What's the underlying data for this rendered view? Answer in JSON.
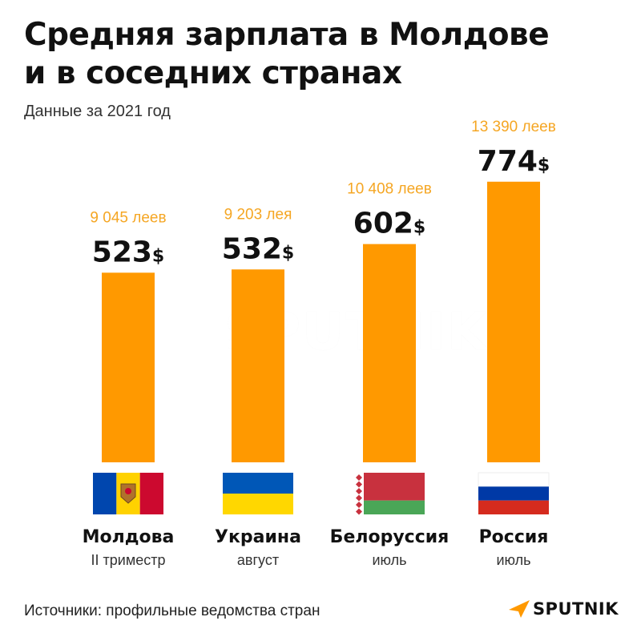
{
  "title_line1": "Средняя зарплата в Молдове",
  "title_line2": "и в соседних странах",
  "subtitle": "Данные за 2021 год",
  "source": "Источники: профильные ведомства стран",
  "brand": "SPUTNIK",
  "watermark": "SPUTNIK",
  "colors": {
    "bar": "#FF9900",
    "lei_label": "#F5A623",
    "text": "#111111"
  },
  "chart_data": {
    "type": "bar",
    "unit": "$",
    "categories": [
      "Молдова",
      "Украина",
      "Белоруссия",
      "Россия"
    ],
    "periods": [
      "II триместр",
      "август",
      "июль",
      "июль"
    ],
    "values": [
      523,
      532,
      602,
      774
    ],
    "value_labels": [
      "523",
      "532",
      "602",
      "774"
    ],
    "lei_labels": [
      "9 045 леев",
      "9 203 лея",
      "10 408 леев",
      "13 390 леев"
    ],
    "flags": [
      "moldova-flag",
      "ukraine-flag",
      "belarus-flag",
      "russia-flag"
    ]
  }
}
